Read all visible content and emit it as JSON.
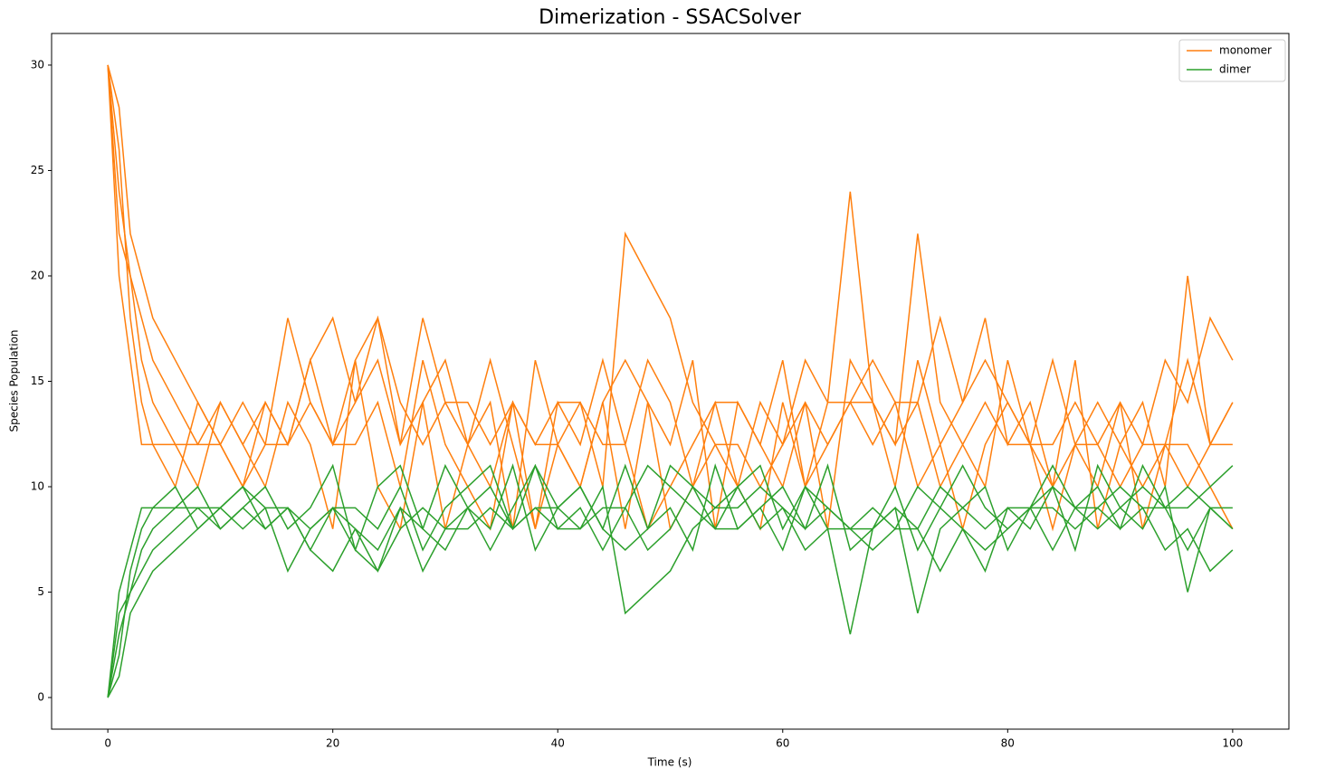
{
  "chart_data": {
    "type": "line",
    "title": "Dimerization - SSACSolver",
    "xlabel": "Time (s)",
    "ylabel": "Species Population",
    "x": [
      0,
      1,
      2,
      3,
      4,
      6,
      8,
      10,
      12,
      14,
      16,
      18,
      20,
      22,
      24,
      26,
      28,
      30,
      32,
      34,
      36,
      38,
      40,
      42,
      44,
      46,
      48,
      50,
      52,
      54,
      56,
      58,
      60,
      62,
      64,
      66,
      68,
      70,
      72,
      74,
      76,
      78,
      80,
      82,
      84,
      86,
      88,
      90,
      92,
      94,
      96,
      98,
      100
    ],
    "xlim": [
      -5,
      105
    ],
    "xticks": [
      0,
      20,
      40,
      60,
      80,
      100
    ],
    "ylim": [
      -1.5,
      31.5
    ],
    "yticks": [
      0,
      5,
      10,
      15,
      20,
      25,
      30
    ],
    "grid": false,
    "legend": "upper right",
    "series": [
      {
        "name": "monomer",
        "color": "#ff7f0e",
        "values": [
          [
            30,
            22,
            20,
            16,
            14,
            12,
            12,
            14,
            12,
            14,
            12,
            16,
            18,
            14,
            16,
            12,
            18,
            14,
            12,
            10,
            14,
            12,
            14,
            14,
            10,
            22,
            20,
            18,
            14,
            12,
            10,
            14,
            12,
            16,
            14,
            14,
            14,
            12,
            22,
            14,
            12,
            14,
            12,
            12,
            12,
            14,
            12,
            10,
            12,
            12,
            16,
            12,
            12
          ],
          [
            30,
            26,
            18,
            14,
            12,
            10,
            14,
            12,
            10,
            12,
            18,
            14,
            12,
            16,
            10,
            8,
            14,
            16,
            12,
            14,
            8,
            16,
            12,
            10,
            14,
            8,
            14,
            12,
            16,
            8,
            14,
            12,
            10,
            14,
            8,
            16,
            14,
            10,
            16,
            12,
            14,
            18,
            12,
            14,
            10,
            16,
            8,
            12,
            14,
            10,
            20,
            12,
            14
          ],
          [
            30,
            20,
            16,
            12,
            12,
            12,
            10,
            14,
            12,
            10,
            14,
            12,
            8,
            16,
            18,
            12,
            14,
            8,
            12,
            16,
            12,
            8,
            14,
            12,
            16,
            12,
            8,
            10,
            12,
            14,
            10,
            8,
            14,
            10,
            12,
            14,
            16,
            14,
            14,
            10,
            12,
            10,
            16,
            12,
            8,
            12,
            10,
            14,
            8,
            12,
            10,
            12,
            14
          ],
          [
            30,
            28,
            22,
            20,
            18,
            16,
            14,
            12,
            14,
            12,
            12,
            16,
            12,
            14,
            18,
            14,
            12,
            14,
            14,
            12,
            14,
            8,
            12,
            14,
            12,
            12,
            16,
            14,
            10,
            14,
            14,
            12,
            16,
            10,
            14,
            24,
            14,
            12,
            14,
            18,
            14,
            16,
            14,
            12,
            16,
            12,
            12,
            14,
            12,
            16,
            14,
            18,
            16
          ],
          [
            30,
            24,
            20,
            18,
            16,
            14,
            12,
            12,
            10,
            14,
            12,
            14,
            12,
            12,
            14,
            10,
            16,
            12,
            10,
            8,
            14,
            12,
            12,
            10,
            14,
            16,
            14,
            8,
            10,
            12,
            12,
            10,
            12,
            14,
            12,
            14,
            12,
            14,
            10,
            12,
            8,
            12,
            14,
            12,
            10,
            12,
            14,
            12,
            10,
            12,
            12,
            10,
            8
          ]
        ]
      },
      {
        "name": "dimer",
        "color": "#2ca02c",
        "values": [
          [
            0,
            4,
            5,
            7,
            8,
            9,
            9,
            8,
            9,
            8,
            9,
            7,
            6,
            8,
            7,
            9,
            6,
            8,
            9,
            10,
            8,
            9,
            8,
            8,
            10,
            4,
            5,
            6,
            8,
            9,
            10,
            8,
            9,
            7,
            8,
            8,
            8,
            9,
            4,
            8,
            9,
            8,
            9,
            9,
            9,
            8,
            9,
            10,
            9,
            9,
            7,
            9,
            9
          ],
          [
            0,
            2,
            6,
            8,
            9,
            10,
            8,
            9,
            10,
            9,
            6,
            8,
            9,
            7,
            10,
            11,
            8,
            7,
            9,
            8,
            11,
            7,
            9,
            10,
            8,
            11,
            8,
            9,
            7,
            11,
            8,
            9,
            10,
            8,
            11,
            7,
            8,
            10,
            7,
            9,
            8,
            6,
            9,
            8,
            10,
            7,
            11,
            9,
            8,
            10,
            5,
            9,
            8
          ],
          [
            0,
            5,
            7,
            9,
            9,
            9,
            10,
            8,
            9,
            10,
            8,
            9,
            11,
            7,
            6,
            9,
            8,
            11,
            9,
            7,
            9,
            11,
            8,
            9,
            7,
            9,
            11,
            10,
            9,
            8,
            10,
            11,
            8,
            10,
            9,
            8,
            7,
            8,
            8,
            10,
            9,
            10,
            7,
            9,
            11,
            9,
            10,
            8,
            11,
            9,
            10,
            9,
            8
          ],
          [
            0,
            1,
            4,
            5,
            6,
            7,
            8,
            9,
            8,
            9,
            9,
            7,
            9,
            8,
            6,
            8,
            9,
            8,
            8,
            9,
            8,
            11,
            9,
            8,
            9,
            9,
            7,
            8,
            10,
            8,
            8,
            9,
            7,
            10,
            8,
            3,
            8,
            9,
            8,
            6,
            8,
            7,
            8,
            9,
            7,
            9,
            9,
            8,
            9,
            7,
            8,
            6,
            7
          ],
          [
            0,
            3,
            5,
            6,
            7,
            8,
            9,
            9,
            10,
            8,
            9,
            8,
            9,
            9,
            8,
            10,
            7,
            9,
            10,
            11,
            8,
            9,
            9,
            10,
            8,
            7,
            8,
            11,
            10,
            9,
            9,
            10,
            9,
            8,
            9,
            8,
            9,
            8,
            10,
            9,
            11,
            9,
            8,
            9,
            10,
            9,
            8,
            9,
            10,
            9,
            9,
            10,
            11
          ]
        ]
      }
    ]
  }
}
